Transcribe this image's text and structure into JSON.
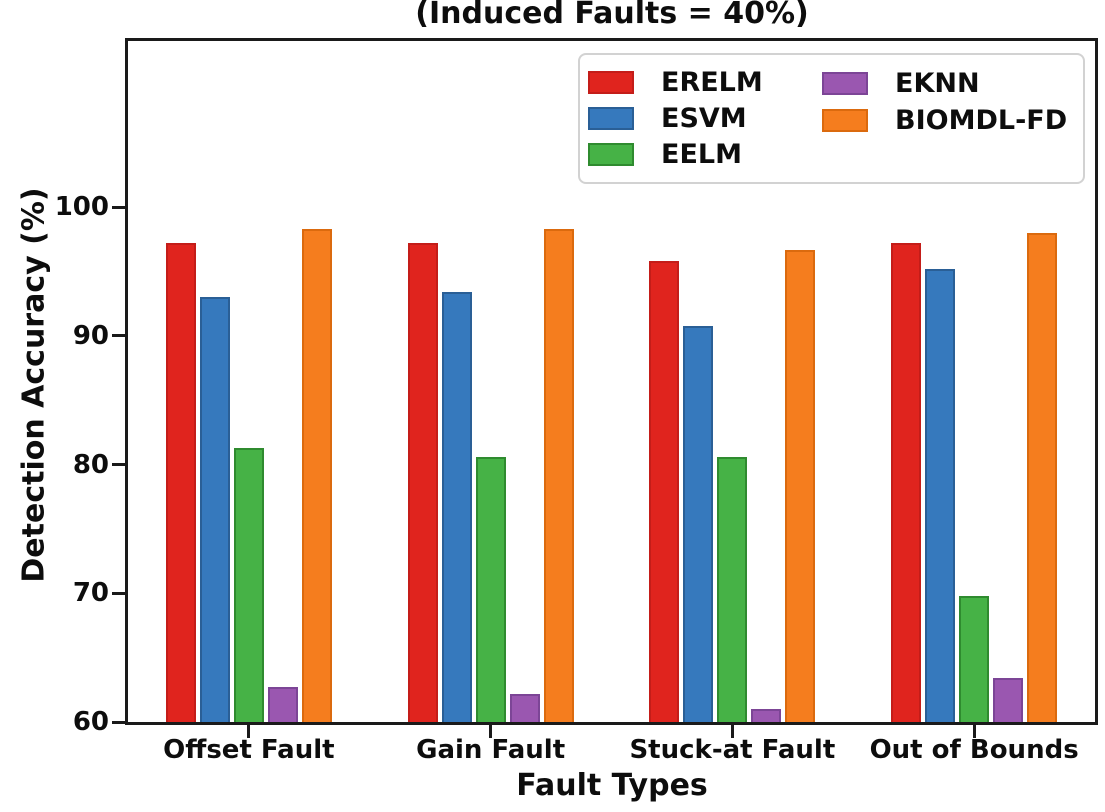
{
  "chart_data": {
    "type": "bar",
    "title": "(Induced Faults = 40%)",
    "xlabel": "Fault Types",
    "ylabel": "Detection Accuracy (%)",
    "categories": [
      "Offset Fault",
      "Gain Fault",
      "Stuck-at Fault",
      "Out of Bounds"
    ],
    "series": [
      {
        "name": "ERELM",
        "color": "#e0241e",
        "edge_color": "#c41d19",
        "values": [
          97.2,
          97.2,
          95.8,
          97.2
        ]
      },
      {
        "name": "ESVM",
        "color": "#3679bd",
        "edge_color": "#2a5f96",
        "values": [
          93.0,
          93.4,
          90.8,
          95.2
        ]
      },
      {
        "name": "EELM",
        "color": "#46b246",
        "edge_color": "#2f8b2f",
        "values": [
          81.3,
          80.6,
          80.6,
          69.8
        ]
      },
      {
        "name": "EKNN",
        "color": "#9a57b0",
        "edge_color": "#7c4596",
        "values": [
          62.7,
          62.2,
          61.0,
          63.4
        ]
      },
      {
        "name": "BIOMDL-FD",
        "color": "#f57d1e",
        "edge_color": "#db6a0e",
        "values": [
          98.3,
          98.3,
          96.7,
          98.0
        ]
      }
    ],
    "yticks": [
      60,
      70,
      80,
      90,
      100
    ],
    "ylim": [
      60,
      112.9
    ],
    "grid": false,
    "legend_position": "upper-right",
    "legend_columns": [
      [
        "ERELM",
        "ESVM",
        "EELM"
      ],
      [
        "EKNN",
        "BIOMDL-FD"
      ]
    ],
    "axis_color": "#1a1a1a",
    "text_color": "#0d0d0d"
  }
}
